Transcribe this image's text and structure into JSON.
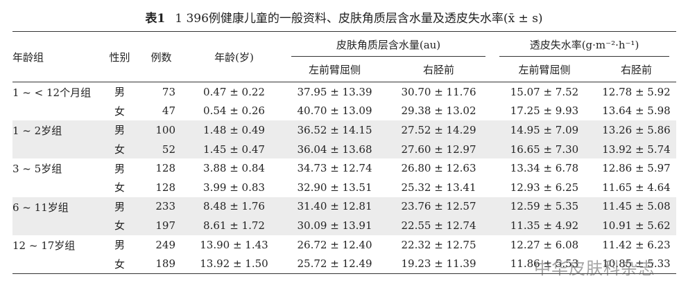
{
  "caption": {
    "label": "表1",
    "text": "1 396例健康儿童的一般资料、皮肤角质层含水量及透皮失水率(x̄ ± s)"
  },
  "header": {
    "age_group": "年龄组",
    "sex": "性别",
    "count": "例数",
    "age": "年龄(岁)",
    "hydration": "皮肤角质层含水量(au)",
    "tewl": "透皮失水率(g·m⁻²·h⁻¹)",
    "sub": [
      "左前臂屈侧",
      "右胫前",
      "左前臂屈侧",
      "右胫前"
    ]
  },
  "table": {
    "groups": [
      {
        "label": "1 ~ < 12个月组",
        "rows": [
          [
            "男",
            73,
            "0.47 ± 0.22",
            "37.95 ± 13.39",
            "30.70 ± 11.76",
            "15.07 ± 7.52",
            "12.78 ± 5.92"
          ],
          [
            "女",
            47,
            "0.54 ± 0.26",
            "40.70 ± 13.09",
            "29.38 ± 13.02",
            "17.25 ± 9.93",
            "13.64 ± 5.98"
          ]
        ]
      },
      {
        "label": "1 ~ 2岁组",
        "rows": [
          [
            "男",
            100,
            "1.48 ± 0.49",
            "36.52 ± 14.15",
            "27.52 ± 14.29",
            "14.95 ± 7.09",
            "13.26 ± 5.86"
          ],
          [
            "女",
            52,
            "1.45 ± 0.47",
            "36.04 ± 13.68",
            "27.60 ± 12.97",
            "16.65 ± 7.30",
            "13.92 ± 5.74"
          ]
        ]
      },
      {
        "label": "3 ~ 5岁组",
        "rows": [
          [
            "男",
            128,
            "3.88 ± 0.84",
            "34.73 ± 12.74",
            "26.80 ± 12.63",
            "13.34 ± 6.78",
            "12.86 ± 5.97"
          ],
          [
            "女",
            128,
            "3.99 ± 0.83",
            "32.90 ± 13.51",
            "25.32 ± 13.41",
            "12.93 ± 6.25",
            "11.65 ± 4.64"
          ]
        ]
      },
      {
        "label": "6 ~ 11岁组",
        "rows": [
          [
            "男",
            233,
            "8.48 ± 1.76",
            "31.40 ± 12.81",
            "23.76 ± 12.57",
            "12.59 ± 5.35",
            "11.45 ± 5.08"
          ],
          [
            "女",
            197,
            "8.61 ± 1.72",
            "30.09 ± 13.91",
            "22.55 ± 12.74",
            "11.35 ± 4.92",
            "10.91 ± 5.62"
          ]
        ]
      },
      {
        "label": "12 ~ 17岁组",
        "rows": [
          [
            "男",
            249,
            "13.90 ± 1.43",
            "26.72 ± 12.40",
            "22.32 ± 12.75",
            "12.27 ± 6.08",
            "11.42 ± 6.23"
          ],
          [
            "女",
            189,
            "13.92 ± 1.50",
            "25.72 ± 12.49",
            "19.23 ± 11.39",
            "11.86 ± 5.53",
            "10.85 ± 5.33"
          ]
        ]
      }
    ]
  },
  "watermark": "中华皮肤科杂志"
}
